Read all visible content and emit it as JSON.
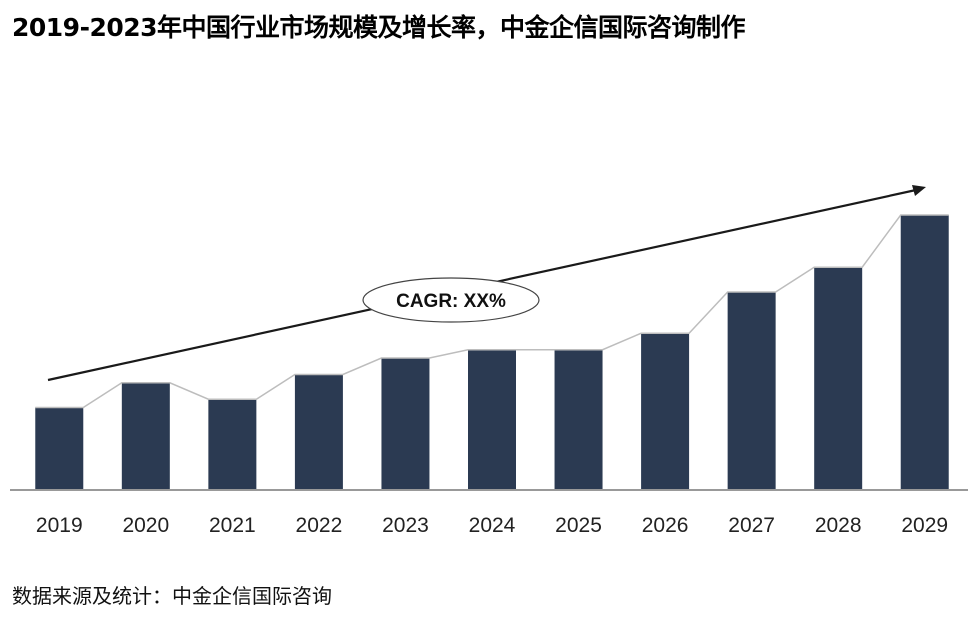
{
  "title": "2019-2023年中国行业市场规模及增长率，中金企信国际咨询制作",
  "source": "数据来源及统计：中金企信国际咨询",
  "colors": {
    "bar": "#2b3a52",
    "trend": "#bdbdbd",
    "arrow": "#1a1a1a",
    "axis": "#999999"
  },
  "chart_data": {
    "type": "bar",
    "title": "2019-2023年中国行业市场规模及增长率，中金企信国际咨询制作",
    "categories": [
      "2019",
      "2020",
      "2021",
      "2022",
      "2023",
      "2024",
      "2025",
      "2026",
      "2027",
      "2028",
      "2029"
    ],
    "values": [
      30,
      39,
      33,
      42,
      48,
      51,
      51,
      57,
      72,
      81,
      100
    ],
    "ylim": [
      0,
      100
    ],
    "xlabel": "",
    "ylabel": "",
    "annotation": "CAGR: XX%",
    "connector_line": true,
    "trend_arrow": true
  }
}
